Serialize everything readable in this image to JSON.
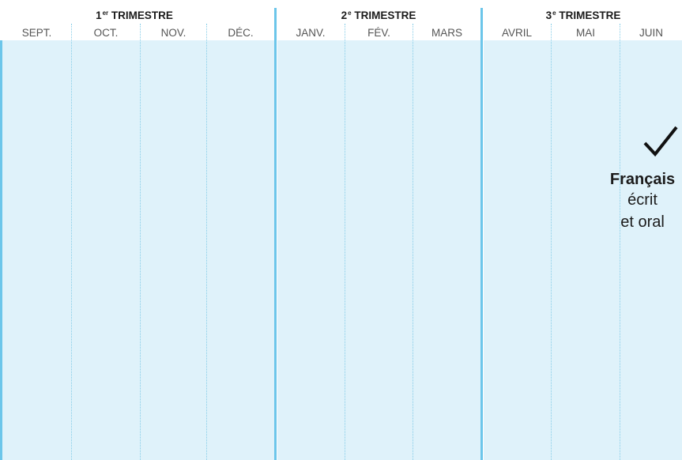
{
  "trimesters": [
    {
      "num": "1",
      "sup": "er",
      "label": "TRIMESTRE"
    },
    {
      "num": "2",
      "sup": "e",
      "label": "TRIMESTRE"
    },
    {
      "num": "3",
      "sup": "e",
      "label": "TRIMESTRE"
    }
  ],
  "months": [
    "SEPT.",
    "OCT.",
    "NOV.",
    "DÉC.",
    "JANV.",
    "FÉV.",
    "MARS",
    "AVRIL",
    "MAI",
    "JUIN"
  ],
  "subject": {
    "title": "Français",
    "line1": "écrit",
    "line2": "et oral",
    "checkmark_icon": "checkmark-icon"
  },
  "colors": {
    "panel_fill": "#dff2fa",
    "trimester_separator": "#6cc6ea",
    "month_divider": "#86cde8",
    "text_dark": "#1b1b1b",
    "text_month": "#555555"
  }
}
